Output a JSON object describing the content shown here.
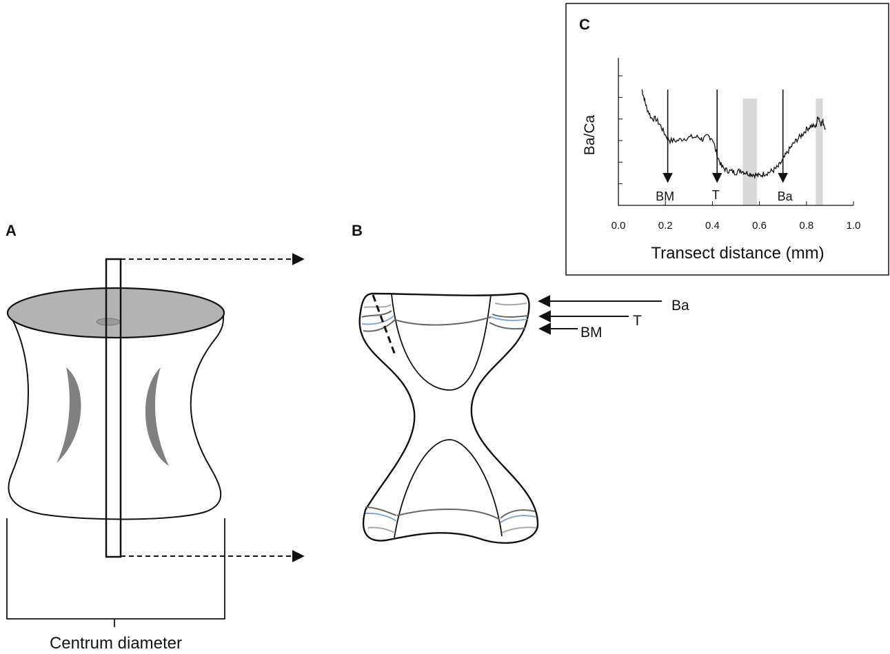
{
  "panels": {
    "a": {
      "letter": "A",
      "caption": "Centrum diameter"
    },
    "b": {
      "letter": "B",
      "arrows": [
        "Ba",
        "T",
        "BM"
      ]
    },
    "c": {
      "letter": "C",
      "markers": [
        "BM",
        "T",
        "Ba"
      ]
    }
  },
  "colors": {
    "line": "#111111",
    "disc": "#b3b3b3",
    "bone_mark": "#808080",
    "band_light": "#a8a8a8",
    "band_blue": "#7fa8d8",
    "band_dark": "#666666",
    "shade": "#d9d9d9"
  },
  "chart_data": {
    "type": "line",
    "title": "",
    "xlabel": "Transect distance (mm)",
    "ylabel": "Ba/Ca",
    "xlim": [
      0.0,
      1.0
    ],
    "xticks": [
      "0.0",
      "0.2",
      "0.4",
      "0.6",
      "0.8",
      "1.0"
    ],
    "y_tick_count": 7,
    "y_units": "relative (no values printed)",
    "shaded_regions": [
      [
        0.53,
        0.59
      ],
      [
        0.84,
        0.87
      ]
    ],
    "events": [
      {
        "label": "BM",
        "x": 0.21
      },
      {
        "label": "T",
        "x": 0.42
      },
      {
        "label": "Ba",
        "x": 0.7
      }
    ],
    "series": [
      {
        "x": [
          0.1,
          0.11,
          0.12,
          0.14,
          0.16,
          0.18,
          0.2,
          0.22,
          0.25,
          0.28,
          0.31,
          0.34,
          0.36,
          0.38,
          0.4,
          0.42,
          0.44,
          0.46,
          0.48,
          0.5,
          0.52,
          0.54,
          0.56,
          0.58,
          0.6,
          0.62,
          0.64,
          0.66,
          0.68,
          0.7,
          0.72,
          0.74,
          0.76,
          0.78,
          0.8,
          0.82,
          0.84,
          0.85,
          0.86,
          0.87,
          0.88
        ],
        "y": [
          0.88,
          0.8,
          0.72,
          0.63,
          0.62,
          0.56,
          0.48,
          0.43,
          0.43,
          0.45,
          0.46,
          0.46,
          0.44,
          0.47,
          0.45,
          0.3,
          0.2,
          0.17,
          0.16,
          0.15,
          0.17,
          0.15,
          0.14,
          0.13,
          0.12,
          0.14,
          0.15,
          0.17,
          0.2,
          0.26,
          0.33,
          0.39,
          0.44,
          0.48,
          0.53,
          0.56,
          0.55,
          0.65,
          0.58,
          0.6,
          0.54
        ]
      }
    ]
  }
}
